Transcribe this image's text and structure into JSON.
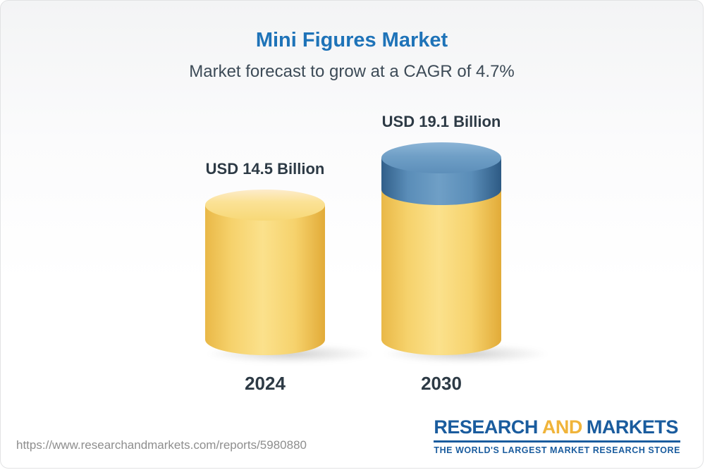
{
  "header": {
    "title": "Mini Figures Market",
    "subtitle": "Market forecast to grow at a CAGR of 4.7%"
  },
  "chart_data": {
    "type": "bar",
    "title": "Mini Figures Market",
    "subtitle": "Market forecast to grow at a CAGR of 4.7%",
    "categories": [
      "2024",
      "2030"
    ],
    "values": [
      14.5,
      19.1
    ],
    "unit": "USD Billion",
    "value_labels": [
      "USD 14.5 Billion",
      "USD 19.1 Billion"
    ],
    "cagr": "4.7%",
    "ylim": [
      0,
      19.1
    ],
    "legend": "none",
    "grid": "off",
    "colors": {
      "base_bar": "#f6d26c",
      "growth_segment": "#5a8db8",
      "title_blue": "#1e73b8",
      "label_dark": "#2d3a45"
    }
  },
  "footer": {
    "url": "https://www.researchandmarkets.com/reports/5980880",
    "logo": {
      "research": "RESEARCH",
      "and": "AND",
      "markets": "MARKETS",
      "tagline": "THE WORLD'S LARGEST MARKET RESEARCH STORE"
    }
  }
}
